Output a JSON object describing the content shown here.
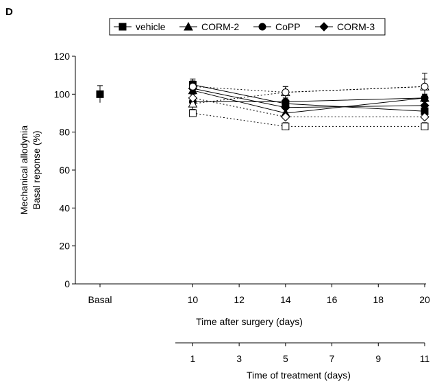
{
  "panel_label": "D",
  "chart_data": {
    "type": "line",
    "title": "",
    "ylabel_line1": "Mechanical allodynia",
    "ylabel_line2": "Basal reponse (%)",
    "xlabel": "Time after surgery (days)",
    "xlabel2": "Time of treatment (days)",
    "ylim": [
      0,
      120
    ],
    "yticks": [
      0,
      20,
      40,
      60,
      80,
      100,
      120
    ],
    "xlim": [
      6,
      20
    ],
    "xticks": [
      {
        "value": 6,
        "label": "Basal"
      },
      {
        "value": 10,
        "label": "10"
      },
      {
        "value": 12,
        "label": "12"
      },
      {
        "value": 14,
        "label": "14"
      },
      {
        "value": 16,
        "label": "16"
      },
      {
        "value": 18,
        "label": "18"
      },
      {
        "value": 20,
        "label": "20"
      }
    ],
    "treatment_ticks": [
      {
        "value": 10,
        "label": "1"
      },
      {
        "value": 12,
        "label": "3"
      },
      {
        "value": 14,
        "label": "5"
      },
      {
        "value": 16,
        "label": "7"
      },
      {
        "value": 18,
        "label": "9"
      },
      {
        "value": 20,
        "label": "11"
      }
    ],
    "basal_point": {
      "x": 6,
      "y": 100,
      "err": 4.5,
      "marker": "square"
    },
    "legend": [
      {
        "name": "vehicle",
        "marker": "square"
      },
      {
        "name": "CORM-2",
        "marker": "triangle"
      },
      {
        "name": "CoPP",
        "marker": "circle"
      },
      {
        "name": "CORM-3",
        "marker": "diamond"
      }
    ],
    "series": [
      {
        "name": "vehicle",
        "marker": "square",
        "fill": "filled",
        "dash": false,
        "x": [
          10,
          14,
          20
        ],
        "y": [
          105,
          95,
          91
        ],
        "err": [
          3,
          2,
          2
        ]
      },
      {
        "name": "CORM-2",
        "marker": "triangle",
        "fill": "filled",
        "dash": false,
        "x": [
          10,
          14,
          20
        ],
        "y": [
          102,
          90,
          98
        ],
        "err": [
          3,
          2,
          2
        ]
      },
      {
        "name": "CoPP",
        "marker": "circle",
        "fill": "filled",
        "dash": false,
        "x": [
          10,
          14,
          20
        ],
        "y": [
          96,
          96,
          98
        ],
        "err": [
          2,
          2,
          2
        ]
      },
      {
        "name": "CORM-3",
        "marker": "diamond",
        "fill": "filled",
        "dash": false,
        "x": [
          10,
          14,
          20
        ],
        "y": [
          103,
          93,
          94
        ],
        "err": [
          2,
          2,
          2
        ]
      },
      {
        "name": "",
        "marker": "square",
        "fill": "open",
        "dash": true,
        "x": [
          10,
          14,
          20
        ],
        "y": [
          90,
          83,
          83
        ],
        "err": [
          2,
          2,
          2
        ]
      },
      {
        "name": "",
        "marker": "triangle",
        "fill": "open",
        "dash": true,
        "x": [
          10,
          14,
          20
        ],
        "y": [
          95,
          101,
          104
        ],
        "err": [
          3,
          3,
          4
        ]
      },
      {
        "name": "",
        "marker": "circle",
        "fill": "open",
        "dash": true,
        "x": [
          10,
          14,
          20
        ],
        "y": [
          104,
          101,
          104
        ],
        "err": [
          3,
          3,
          7
        ]
      },
      {
        "name": "",
        "marker": "diamond",
        "fill": "open",
        "dash": true,
        "x": [
          10,
          14,
          20
        ],
        "y": [
          98,
          88,
          88
        ],
        "err": [
          2,
          2,
          2
        ]
      }
    ]
  }
}
